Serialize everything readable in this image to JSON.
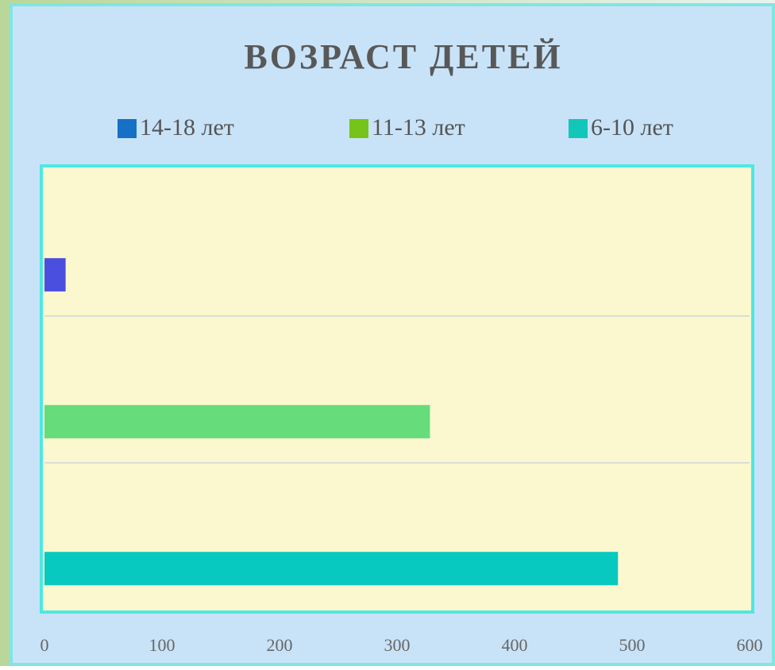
{
  "chart_data": {
    "type": "hbar",
    "title": "ВОЗРАСТ ДЕТЕЙ",
    "categories": [
      null,
      null,
      null
    ],
    "series": [
      {
        "name": "14-18 лет",
        "color": "#4a4fdf",
        "legend_color": "#1570c6",
        "values": [
          18,
          null,
          null
        ]
      },
      {
        "name": "11-13 лет",
        "color": "#66dc7a",
        "legend_color": "#76c41a",
        "values": [
          null,
          328,
          null
        ]
      },
      {
        "name": "6-10 лет",
        "color": "#08c9c0",
        "legend_color": "#12c6b8",
        "values": [
          null,
          null,
          488
        ]
      }
    ],
    "xlim": [
      0,
      600
    ],
    "xticks": [
      0,
      100,
      200,
      300,
      400,
      500,
      600
    ],
    "grid": true
  }
}
